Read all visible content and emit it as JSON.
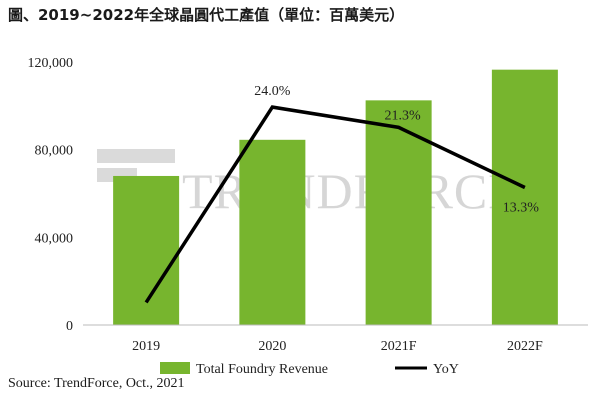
{
  "title": "圖、2019~2022年全球晶圓代工產值（單位：百萬美元）",
  "source": "Source: TrendForce, Oct., 2021",
  "watermark": "TRENDFORCE",
  "colors": {
    "bar": "#77b52e",
    "line": "#000000",
    "watermark": "#b5b5b5"
  },
  "chart_data": {
    "type": "bar",
    "categories": [
      "2019",
      "2020",
      "2021F",
      "2022F"
    ],
    "series": [
      {
        "name": "Total Foundry Revenue",
        "type": "bar",
        "axis": "left",
        "values": [
          68000,
          84500,
          102500,
          116500
        ]
      },
      {
        "name": "YoY",
        "type": "line",
        "axis": "right",
        "values": [
          -2.0,
          24.0,
          21.3,
          13.3
        ],
        "labels": [
          "",
          "24.0%",
          "21.3%",
          "13.3%"
        ]
      }
    ],
    "y_ticks": [
      "0",
      "40,000",
      "80,000",
      "120,000"
    ],
    "ylim": [
      0,
      120000
    ],
    "y2lim": [
      -5,
      30
    ],
    "legend_position": "bottom",
    "grid": false
  }
}
